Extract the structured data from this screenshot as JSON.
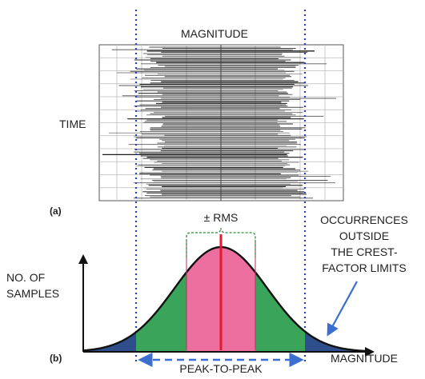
{
  "panel_a": {
    "label": "(a)",
    "top_label": "MAGNITUDE",
    "side_label": "TIME"
  },
  "panel_b": {
    "label": "(b)",
    "rms_label": "± RMS",
    "y_axis_label_lines": [
      "NO. OF",
      "SAMPLES"
    ],
    "x_axis_label": "MAGNITUDE",
    "peak_to_peak_label": "PEAK-TO-PEAK",
    "annotation_lines": [
      "OCCURRENCES",
      "OUTSIDE",
      "THE CREST-",
      "FACTOR LIMITS"
    ]
  },
  "colors": {
    "rms_region": "#ec6fa0",
    "crest_region": "#3aa55a",
    "tail_region": "#2f4f8c",
    "center_line": "#e8182a",
    "limit_lines": "#2b3fc4",
    "arrow": "#3a6fd0",
    "bracket": "#2f8a3c",
    "waveform": "#1a1a1a"
  }
}
